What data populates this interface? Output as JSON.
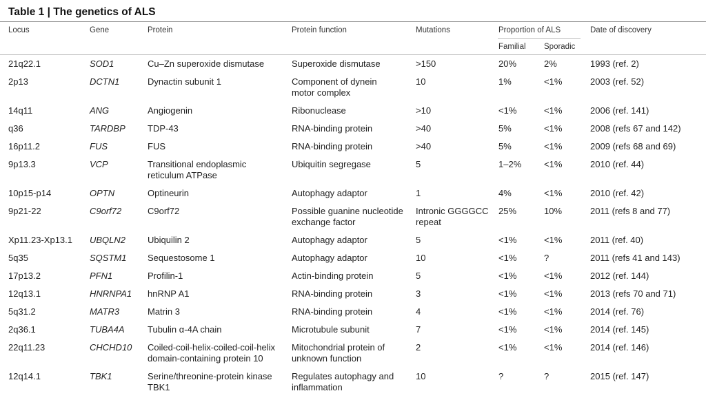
{
  "title": "Table 1 | The genetics of ALS",
  "headers": {
    "locus": "Locus",
    "gene": "Gene",
    "protein": "Protein",
    "function": "Protein function",
    "mutations": "Mutations",
    "proportion": "Proportion of ALS",
    "familial": "Familial",
    "sporadic": "Sporadic",
    "date": "Date of discovery"
  },
  "rows": [
    {
      "locus": "21q22.1",
      "gene": "SOD1",
      "protein": [
        "Cu–Zn superoxide dismutase"
      ],
      "function": [
        "Superoxide dismutase"
      ],
      "mutations": [
        ">150"
      ],
      "familial": "20%",
      "sporadic": "2%",
      "date": "1993 (ref. 2)"
    },
    {
      "locus": "2p13",
      "gene": "DCTN1",
      "protein": [
        "Dynactin subunit 1"
      ],
      "function": [
        "Component of dynein",
        "motor complex"
      ],
      "mutations": [
        "10"
      ],
      "familial": "1%",
      "sporadic": "<1%",
      "date": "2003 (ref. 52)"
    },
    {
      "locus": "14q11",
      "gene": "ANG",
      "protein": [
        "Angiogenin"
      ],
      "function": [
        "Ribonuclease"
      ],
      "mutations": [
        ">10"
      ],
      "familial": "<1%",
      "sporadic": "<1%",
      "date": "2006 (ref. 141)"
    },
    {
      "locus": "q36",
      "gene": "TARDBP",
      "protein": [
        "TDP-43"
      ],
      "function": [
        "RNA-binding protein"
      ],
      "mutations": [
        ">40"
      ],
      "familial": "5%",
      "sporadic": "<1%",
      "date": "2008 (refs 67 and 142)"
    },
    {
      "locus": "16p11.2",
      "gene": "FUS",
      "protein": [
        "FUS"
      ],
      "function": [
        "RNA-binding protein"
      ],
      "mutations": [
        ">40"
      ],
      "familial": "5%",
      "sporadic": "<1%",
      "date": "2009 (refs 68 and 69)"
    },
    {
      "locus": "9p13.3",
      "gene": "VCP",
      "protein": [
        "Transitional endoplasmic",
        "reticulum ATPase"
      ],
      "function": [
        "Ubiquitin segregase"
      ],
      "mutations": [
        "5"
      ],
      "familial": "1–2%",
      "sporadic": "<1%",
      "date": "2010 (ref. 44)"
    },
    {
      "locus": "10p15-p14",
      "gene": "OPTN",
      "protein": [
        "Optineurin"
      ],
      "function": [
        "Autophagy adaptor"
      ],
      "mutations": [
        "1"
      ],
      "familial": "4%",
      "sporadic": "<1%",
      "date": "2010 (ref. 42)"
    },
    {
      "locus": "9p21-22",
      "gene": "C9orf72",
      "protein": [
        "C9orf72"
      ],
      "function": [
        "Possible guanine nucleotide",
        "exchange factor"
      ],
      "mutations": [
        "Intronic GGGGCC",
        "repeat"
      ],
      "familial": "25%",
      "sporadic": "10%",
      "date": "2011 (refs 8 and 77)"
    },
    {
      "locus": "Xp11.23-Xp13.1",
      "gene": "UBQLN2",
      "protein": [
        "Ubiquilin 2"
      ],
      "function": [
        "Autophagy adaptor"
      ],
      "mutations": [
        "5"
      ],
      "familial": "<1%",
      "sporadic": "<1%",
      "date": "2011 (ref. 40)"
    },
    {
      "locus": "5q35",
      "gene": "SQSTM1",
      "protein": [
        "Sequestosome 1"
      ],
      "function": [
        "Autophagy adaptor"
      ],
      "mutations": [
        "10"
      ],
      "familial": "<1%",
      "sporadic": "?",
      "date": "2011 (refs 41 and 143)"
    },
    {
      "locus": "17p13.2",
      "gene": "PFN1",
      "protein": [
        "Profilin-1"
      ],
      "function": [
        "Actin-binding protein"
      ],
      "mutations": [
        "5"
      ],
      "familial": "<1%",
      "sporadic": "<1%",
      "date": "2012 (ref. 144)"
    },
    {
      "locus": "12q13.1",
      "gene": "HNRNPA1",
      "protein": [
        "hnRNP A1"
      ],
      "function": [
        "RNA-binding protein"
      ],
      "mutations": [
        "3"
      ],
      "familial": "<1%",
      "sporadic": "<1%",
      "date": "2013 (refs 70 and 71)"
    },
    {
      "locus": "5q31.2",
      "gene": "MATR3",
      "protein": [
        "Matrin 3"
      ],
      "function": [
        "RNA-binding protein"
      ],
      "mutations": [
        "4"
      ],
      "familial": "<1%",
      "sporadic": "<1%",
      "date": "2014 (ref. 76)"
    },
    {
      "locus": "2q36.1",
      "gene": "TUBA4A",
      "protein": [
        "Tubulin α-4A chain"
      ],
      "function": [
        "Microtubule subunit"
      ],
      "mutations": [
        "7"
      ],
      "familial": "<1%",
      "sporadic": "<1%",
      "date": "2014 (ref. 145)"
    },
    {
      "locus": "22q11.23",
      "gene": "CHCHD10",
      "protein": [
        "Coiled-coil-helix-coiled-coil-helix",
        "domain-containing protein 10"
      ],
      "function": [
        "Mitochondrial protein of",
        "unknown function"
      ],
      "mutations": [
        "2"
      ],
      "familial": "<1%",
      "sporadic": "<1%",
      "date": "2014 (ref. 146)"
    },
    {
      "locus": "12q14.1",
      "gene": "TBK1",
      "protein": [
        "Serine/threonine-protein kinase",
        "TBK1"
      ],
      "function": [
        "Regulates autophagy and",
        "inflammation"
      ],
      "mutations": [
        "10"
      ],
      "familial": "?",
      "sporadic": "?",
      "date": "2015 (ref. 147)"
    }
  ]
}
